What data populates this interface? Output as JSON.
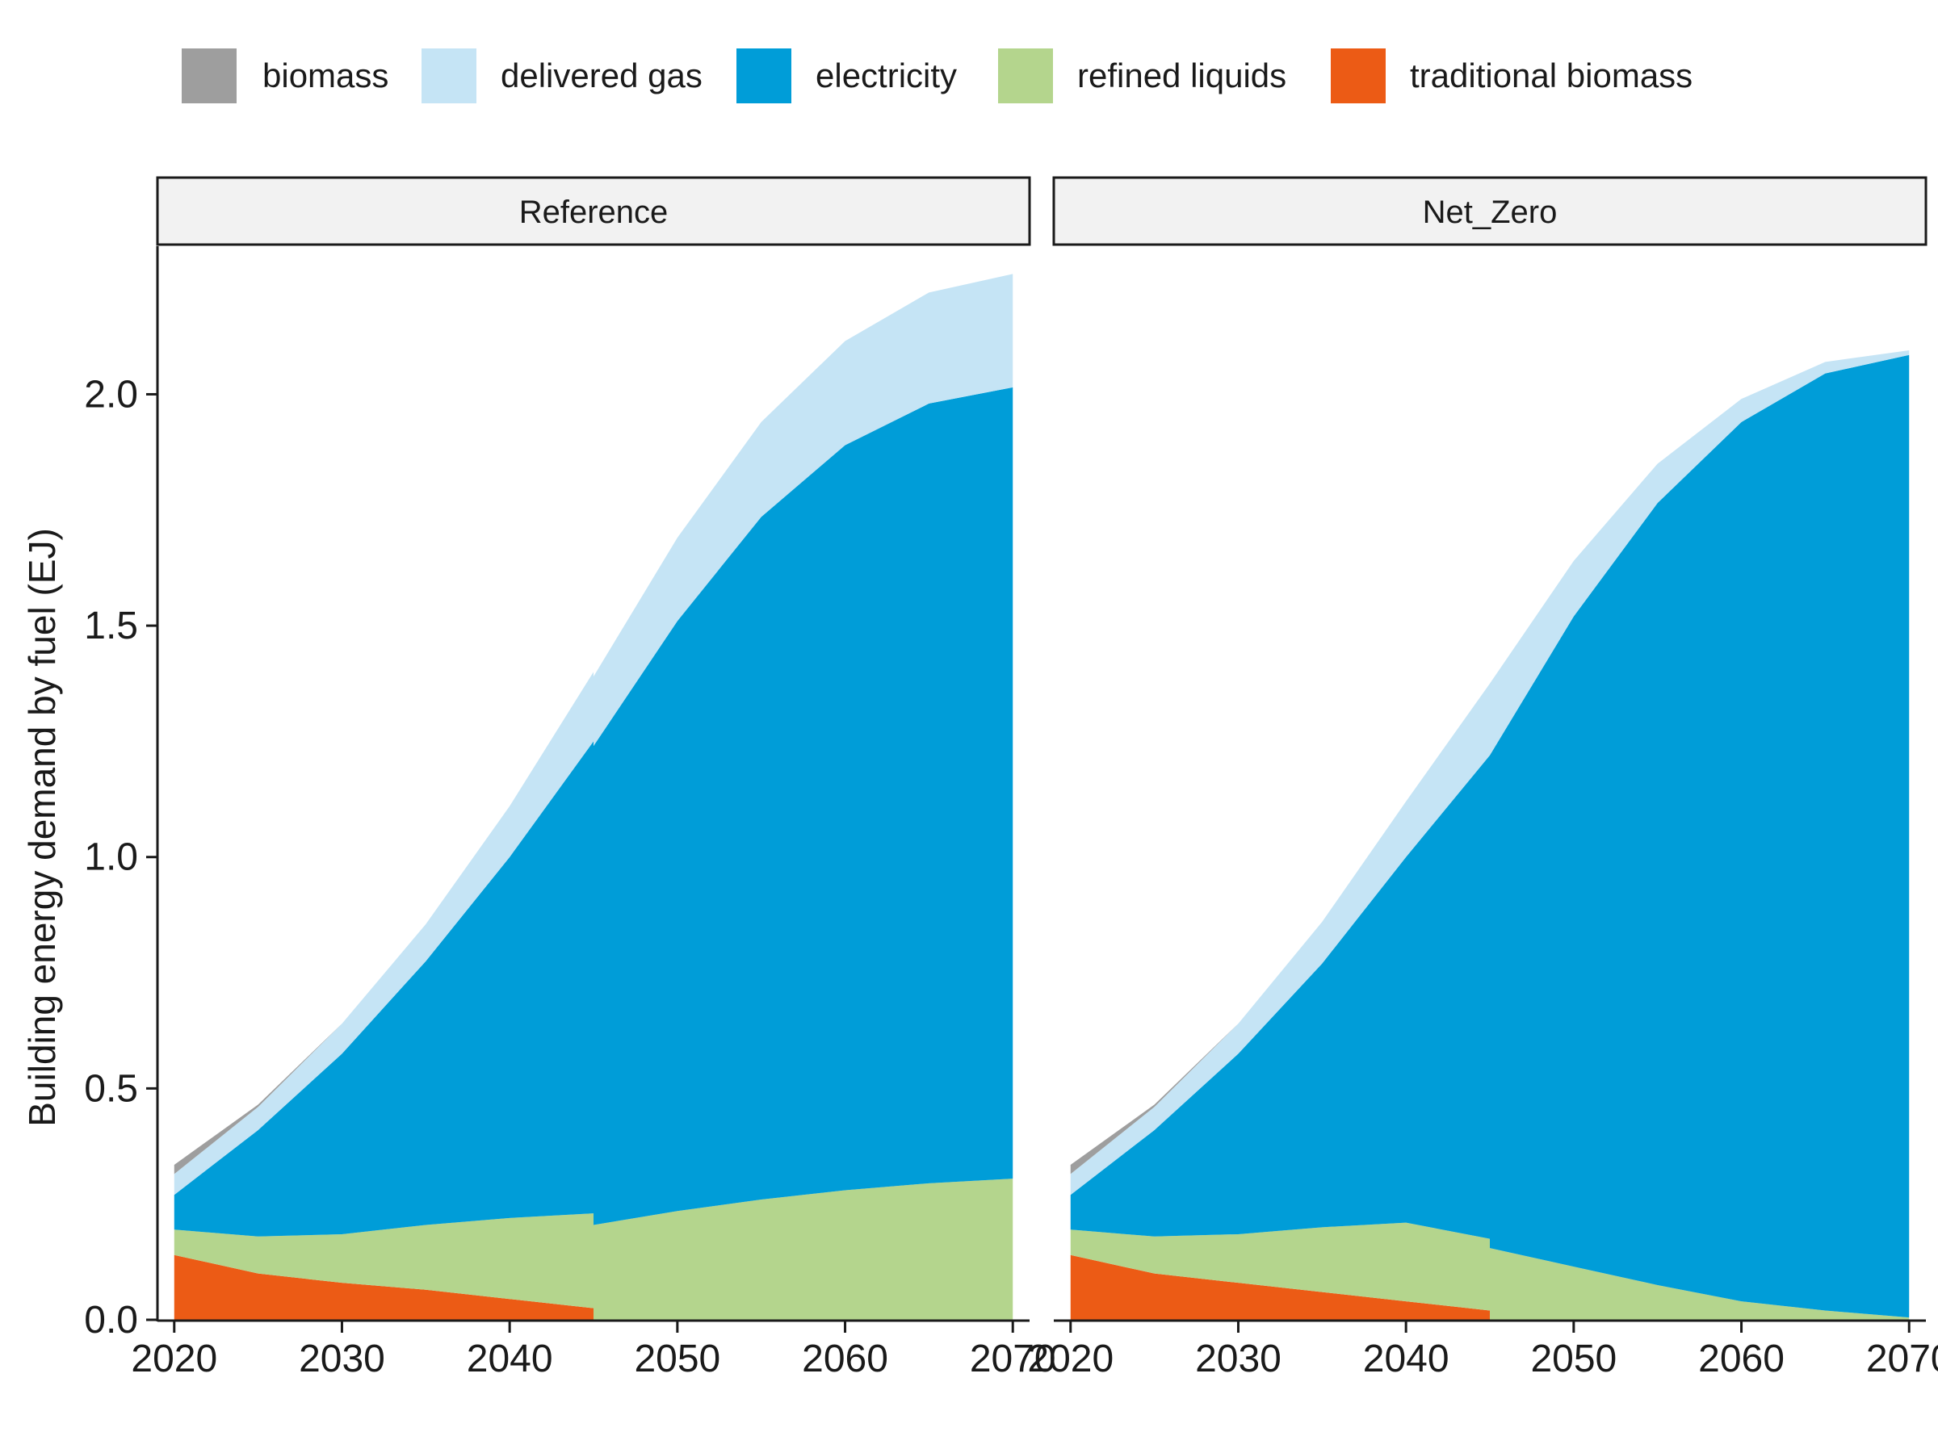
{
  "chart_data": {
    "type": "area",
    "stacked": true,
    "ylabel": "Building energy demand by fuel (EJ)",
    "xlabel": "",
    "ylim": [
      0,
      2.32
    ],
    "y_ticks": [
      0.0,
      0.5,
      1.0,
      1.5,
      2.0
    ],
    "y_tick_labels": [
      "0.0",
      "0.5",
      "1.0",
      "1.5",
      "2.0"
    ],
    "xlim": [
      2019,
      2071
    ],
    "x_ticks": [
      2020,
      2030,
      2040,
      2050,
      2060,
      2070
    ],
    "x_tick_labels": [
      "2020",
      "2030",
      "2040",
      "2050",
      "2060",
      "2070"
    ],
    "legend_position": "top",
    "grid": false,
    "legend": [
      {
        "name": "biomass",
        "color": "#9e9e9e"
      },
      {
        "name": "delivered gas",
        "color": "#c5e4f5"
      },
      {
        "name": "electricity",
        "color": "#009dd8"
      },
      {
        "name": "refined liquids",
        "color": "#b4d58d"
      },
      {
        "name": "traditional biomass",
        "color": "#ec5b15"
      }
    ],
    "stack_order_bottom_to_top": [
      "traditional biomass",
      "refined liquids",
      "electricity",
      "delivered gas",
      "biomass"
    ],
    "panels": [
      {
        "name": "Reference",
        "x": [
          2020,
          2025,
          2030,
          2035,
          2040,
          2045,
          2045,
          2050,
          2055,
          2060,
          2065,
          2070
        ],
        "series": [
          {
            "name": "traditional biomass",
            "values": [
              0.14,
              0.1,
              0.08,
              0.065,
              0.045,
              0.025,
              0.0,
              0.0,
              0.0,
              0.0,
              0.0,
              0.0
            ]
          },
          {
            "name": "refined liquids",
            "values": [
              0.055,
              0.08,
              0.105,
              0.14,
              0.175,
              0.205,
              0.205,
              0.235,
              0.26,
              0.28,
              0.295,
              0.305
            ]
          },
          {
            "name": "electricity",
            "values": [
              0.075,
              0.23,
              0.39,
              0.57,
              0.78,
              1.02,
              1.035,
              1.275,
              1.475,
              1.61,
              1.685,
              1.71
            ]
          },
          {
            "name": "delivered gas",
            "values": [
              0.045,
              0.05,
              0.065,
              0.08,
              0.11,
              0.15,
              0.15,
              0.18,
              0.205,
              0.225,
              0.24,
              0.245
            ]
          },
          {
            "name": "biomass",
            "values": [
              0.02,
              0.005,
              0.0,
              0.0,
              0.0,
              0.0,
              0.0,
              0.0,
              0.0,
              0.0,
              0.0,
              0.0
            ]
          }
        ]
      },
      {
        "name": "Net_Zero",
        "x": [
          2020,
          2025,
          2030,
          2035,
          2040,
          2045,
          2045,
          2050,
          2055,
          2060,
          2065,
          2070
        ],
        "series": [
          {
            "name": "traditional biomass",
            "values": [
              0.14,
              0.1,
              0.08,
              0.06,
              0.04,
              0.02,
              0.0,
              0.0,
              0.0,
              0.0,
              0.0,
              0.0
            ]
          },
          {
            "name": "refined liquids",
            "values": [
              0.055,
              0.08,
              0.105,
              0.14,
              0.17,
              0.155,
              0.155,
              0.115,
              0.075,
              0.04,
              0.02,
              0.005
            ]
          },
          {
            "name": "electricity",
            "values": [
              0.075,
              0.23,
              0.39,
              0.57,
              0.79,
              1.045,
              1.065,
              1.405,
              1.69,
              1.9,
              2.025,
              2.08
            ]
          },
          {
            "name": "delivered gas",
            "values": [
              0.045,
              0.05,
              0.065,
              0.09,
              0.12,
              0.155,
              0.155,
              0.12,
              0.085,
              0.05,
              0.025,
              0.01
            ]
          },
          {
            "name": "biomass",
            "values": [
              0.02,
              0.005,
              0.0,
              0.0,
              0.0,
              0.0,
              0.0,
              0.0,
              0.0,
              0.0,
              0.0,
              0.0
            ]
          }
        ]
      }
    ]
  }
}
